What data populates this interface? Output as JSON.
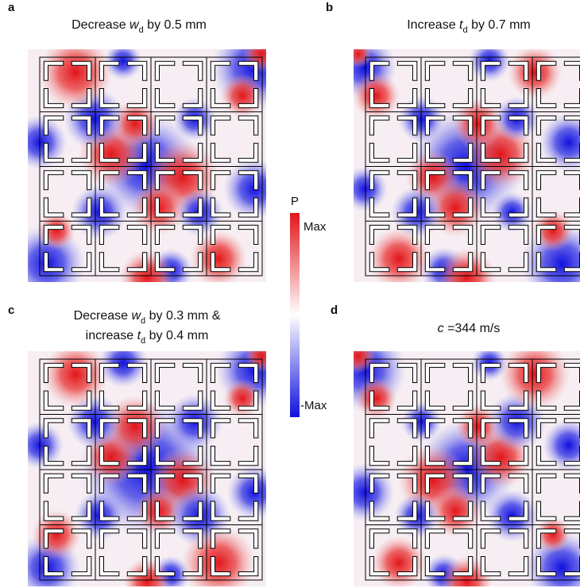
{
  "panels": [
    {
      "label": "a",
      "title_lines": [
        {
          "pre": "Decrease ",
          "var": "w",
          "sub": "d",
          "post": " by 0.5 mm"
        }
      ]
    },
    {
      "label": "b",
      "title_lines": [
        {
          "pre": "Increase ",
          "var": "t",
          "sub": "d",
          "post": " by 0.7 mm"
        }
      ]
    },
    {
      "label": "c",
      "title_lines": [
        {
          "pre": "Decrease ",
          "var": "w",
          "sub": "d",
          "post": " by 0.3 mm &"
        },
        {
          "pre": "increase ",
          "var": "t",
          "sub": "d",
          "post": " by 0.4 mm"
        }
      ]
    },
    {
      "label": "d",
      "title_lines": [
        {
          "var": "c",
          "post": " =344 m/s"
        }
      ]
    }
  ],
  "colorbar": {
    "label": "P",
    "max": "Max",
    "min": "-Max"
  }
}
